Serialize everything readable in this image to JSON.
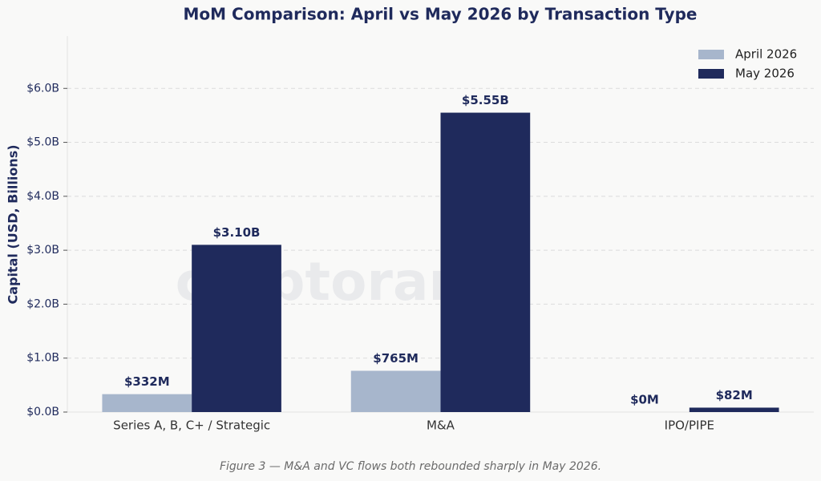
{
  "chart_data": {
    "type": "bar",
    "title": "MoM Comparison: April vs May 2026 by Transaction Type",
    "ylabel": "Capital (USD, Billions)",
    "caption": "Figure 3 — M&A and VC flows both rebounded sharply in May 2026.",
    "watermark": "cryptorank",
    "categories": [
      "Series A, B, C+ / Strategic",
      "M&A",
      "IPO/PIPE"
    ],
    "series": [
      {
        "name": "April 2026",
        "color": "#a7b6cc",
        "values": [
          0.332,
          0.765,
          0
        ],
        "value_labels": [
          "$332M",
          "$765M",
          "$0M"
        ]
      },
      {
        "name": "May 2026",
        "color": "#1f2a5c",
        "values": [
          3.1,
          5.55,
          0.082
        ],
        "value_labels": [
          "$3.10B",
          "$5.55B",
          "$82M"
        ]
      }
    ],
    "ylim": [
      0,
      6.97
    ],
    "yticks": [
      {
        "value": 0,
        "label": "$0.0B"
      },
      {
        "value": 1,
        "label": "$1.0B"
      },
      {
        "value": 2,
        "label": "$2.0B"
      },
      {
        "value": 3,
        "label": "$3.0B"
      },
      {
        "value": 4,
        "label": "$4.0B"
      },
      {
        "value": 5,
        "label": "$5.0B"
      },
      {
        "value": 6,
        "label": "$6.0B"
      }
    ],
    "grid": true,
    "legend": "upper right"
  }
}
